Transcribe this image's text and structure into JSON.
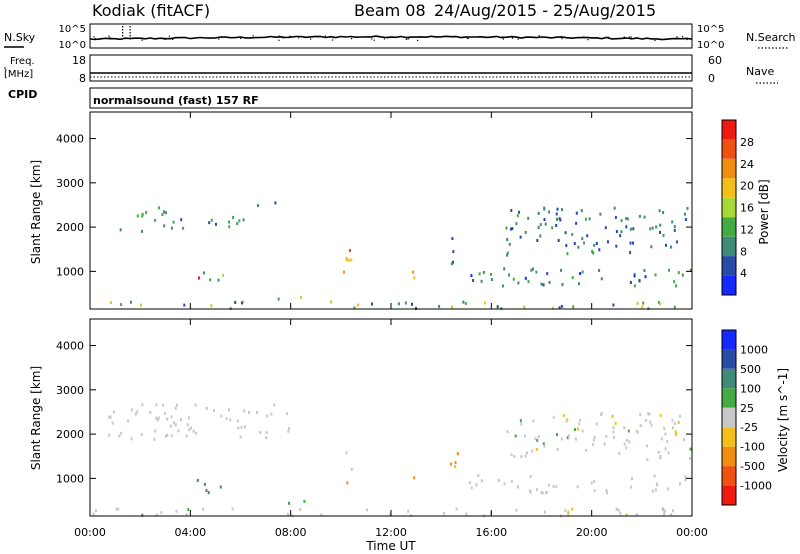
{
  "header": {
    "station": "Kodiak (fitACF)",
    "beam": "Beam 08",
    "date_range": "24/Aug/2015 - 25/Aug/2015"
  },
  "top_panels": {
    "nsky_label": "N.Sky",
    "nsky_ticks": [
      "10^5",
      "10^0"
    ],
    "nsearch_label": "N.Search",
    "nsearch_ticks": [
      "10^5",
      "10^0"
    ],
    "freq_label_1": "Freq.",
    "freq_label_2": "[MHz]",
    "freq_ticks": [
      "18",
      "8"
    ],
    "nave_label": "Nave",
    "nave_ticks": [
      "60",
      "0"
    ],
    "cpid_label": "CPID",
    "cpid_value": "normalsound (fast) 157 RF"
  },
  "colors": {
    "power": [
      "#1428ff",
      "#2a4aa8",
      "#3f8a78",
      "#44aa44",
      "#a8d838",
      "#f4c018",
      "#f08c10",
      "#f05010",
      "#ee1a10"
    ],
    "velocity": [
      "#1428ff",
      "#2a4aa8",
      "#3f8a78",
      "#44aa44",
      "#c8c8c8",
      "#f4c018",
      "#f08c10",
      "#f05010",
      "#ee1a10"
    ]
  },
  "chart_data": [
    {
      "type": "heatmap",
      "panel": "power",
      "ylabel": "Slant Range [km]",
      "yticks": [
        "1000",
        "2000",
        "3000",
        "4000"
      ],
      "ylim": [
        150,
        4600
      ],
      "colorbar_label": "Power [dB]",
      "colorbar_ticks": [
        "4",
        "8",
        "12",
        "16",
        "20",
        "24",
        "28"
      ],
      "colorbar_range": [
        0,
        32
      ],
      "regions": [
        {
          "t": [
            0.6,
            3.5
          ],
          "r": [
            1900,
            2500
          ],
          "v": [
            8,
            16
          ]
        },
        {
          "t": [
            3.5,
            6.5
          ],
          "r": [
            2000,
            2300
          ],
          "v": [
            6,
            12
          ]
        },
        {
          "t": [
            6.5,
            8.0
          ],
          "r": [
            2350,
            2700
          ],
          "v": [
            4,
            10
          ]
        },
        {
          "t": [
            4.2,
            5.5
          ],
          "r": [
            650,
            1100
          ],
          "v": [
            10,
            30
          ]
        },
        {
          "t": [
            7.2,
            8.7
          ],
          "r": [
            400,
            520
          ],
          "v": [
            10,
            16
          ]
        },
        {
          "t": [
            9.8,
            10.4
          ],
          "r": [
            900,
            1700
          ],
          "v": [
            14,
            28
          ]
        },
        {
          "t": [
            12.6,
            12.9
          ],
          "r": [
            850,
            1150
          ],
          "v": [
            14,
            24
          ]
        },
        {
          "t": [
            14.3,
            14.8
          ],
          "r": [
            1200,
            1800
          ],
          "v": [
            4,
            10
          ]
        },
        {
          "t": [
            15.0,
            24.0
          ],
          "r": [
            700,
            1100
          ],
          "v": [
            3,
            14
          ]
        },
        {
          "t": [
            16.5,
            24.0
          ],
          "r": [
            1400,
            2500
          ],
          "v": [
            4,
            12
          ]
        },
        {
          "t": [
            0.0,
            24.0
          ],
          "r": [
            180,
            350
          ],
          "v": [
            4,
            20
          ]
        }
      ]
    },
    {
      "type": "heatmap",
      "panel": "velocity",
      "ylabel": "Slant Range [km]",
      "yticks": [
        "1000",
        "2000",
        "3000",
        "4000"
      ],
      "ylim": [
        150,
        4600
      ],
      "colorbar_label": "Velocity [m s^-1]",
      "colorbar_ticks": [
        "1000",
        "500",
        "100",
        "25",
        "-25",
        "-100",
        "-500",
        "-1000"
      ],
      "colorbar_range": [
        -1000,
        1000
      ],
      "xlabel": "Time UT",
      "xticks": [
        "00:00",
        "04:00",
        "08:00",
        "12:00",
        "16:00",
        "20:00",
        "00:00"
      ],
      "xlim_hours": [
        0,
        24
      ],
      "regions": [
        {
          "t": [
            0.6,
            8.0
          ],
          "r": [
            1900,
            2700
          ],
          "v": [
            -20,
            20
          ]
        },
        {
          "t": [
            4.2,
            5.5
          ],
          "r": [
            650,
            1100
          ],
          "v": [
            50,
            200
          ]
        },
        {
          "t": [
            7.2,
            8.7
          ],
          "r": [
            400,
            520
          ],
          "v": [
            50,
            150
          ]
        },
        {
          "t": [
            9.8,
            10.4
          ],
          "r": [
            900,
            1700
          ],
          "v": [
            -300,
            100
          ]
        },
        {
          "t": [
            12.6,
            12.9
          ],
          "r": [
            850,
            1150
          ],
          "v": [
            -200,
            -50
          ]
        },
        {
          "t": [
            14.3,
            14.8
          ],
          "r": [
            1200,
            1800
          ],
          "v": [
            -300,
            -50
          ]
        },
        {
          "t": [
            15.0,
            24.0
          ],
          "r": [
            700,
            1100
          ],
          "v": [
            -20,
            20
          ]
        },
        {
          "t": [
            16.5,
            24.0
          ],
          "r": [
            1400,
            2500
          ],
          "v": [
            -30,
            30
          ]
        },
        {
          "t": [
            0.0,
            24.0
          ],
          "r": [
            180,
            350
          ],
          "v": [
            -30,
            30
          ]
        }
      ]
    }
  ]
}
